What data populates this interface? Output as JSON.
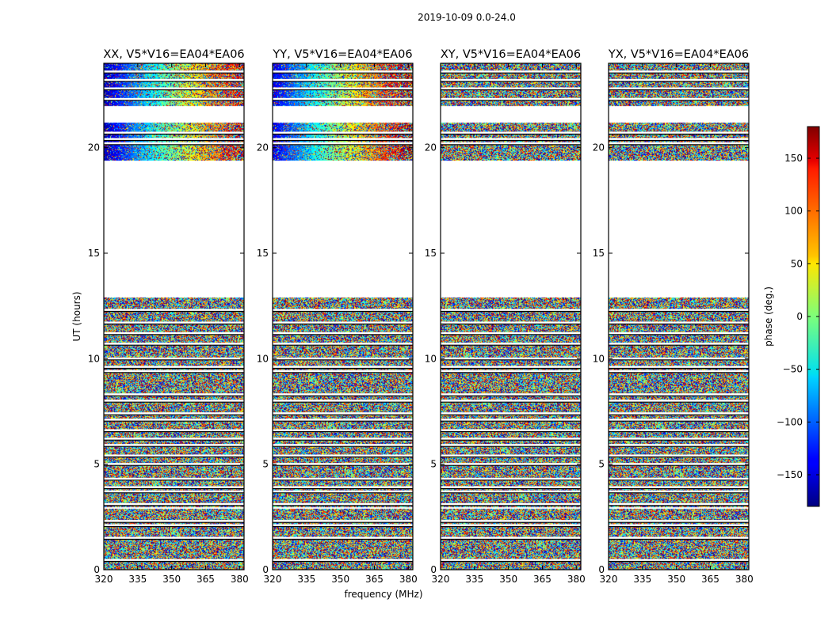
{
  "chart_data": {
    "type": "heatmap",
    "suptitle": "2019-10-09 0.0-24.0",
    "xlabel": "frequency (MHz)",
    "ylabel": "UT (hours)",
    "xlim": [
      320,
      382
    ],
    "ylim": [
      0,
      24
    ],
    "xticks": [
      320,
      335,
      350,
      365,
      380
    ],
    "yticks": [
      0,
      5,
      10,
      15,
      20
    ],
    "panels": [
      {
        "title": "XX, V5*V16=EA04*EA06",
        "coherent": true
      },
      {
        "title": "YY, V5*V16=EA04*EA06",
        "coherent": true
      },
      {
        "title": "XY, V5*V16=EA04*EA06",
        "coherent": false
      },
      {
        "title": "YX, V5*V16=EA04*EA06",
        "coherent": false
      }
    ],
    "data_blocks_ut": [
      [
        0.0,
        2.9
      ],
      [
        3.0,
        12.9
      ],
      [
        19.4,
        21.2
      ],
      [
        22.0,
        24.0
      ]
    ],
    "gap_lines_ut": [
      0.45,
      1.5,
      2.1,
      2.3,
      3.1,
      3.7,
      3.9,
      4.3,
      5.0,
      5.4,
      5.9,
      6.2,
      6.6,
      7.1,
      7.4,
      8.0,
      8.3,
      9.4,
      9.6,
      10.0,
      10.7,
      11.2,
      11.7,
      12.3,
      20.2,
      20.4,
      20.7,
      22.3,
      22.8,
      23.2,
      23.6
    ],
    "colorbar": {
      "label": "phase (deg.)",
      "range": [
        -180,
        180
      ],
      "ticks": [
        "150",
        "100",
        "50",
        "0",
        "−50",
        "−100",
        "−150"
      ],
      "tick_values": [
        150,
        100,
        50,
        0,
        -50,
        -100,
        -150
      ],
      "colormap": "jet"
    }
  }
}
